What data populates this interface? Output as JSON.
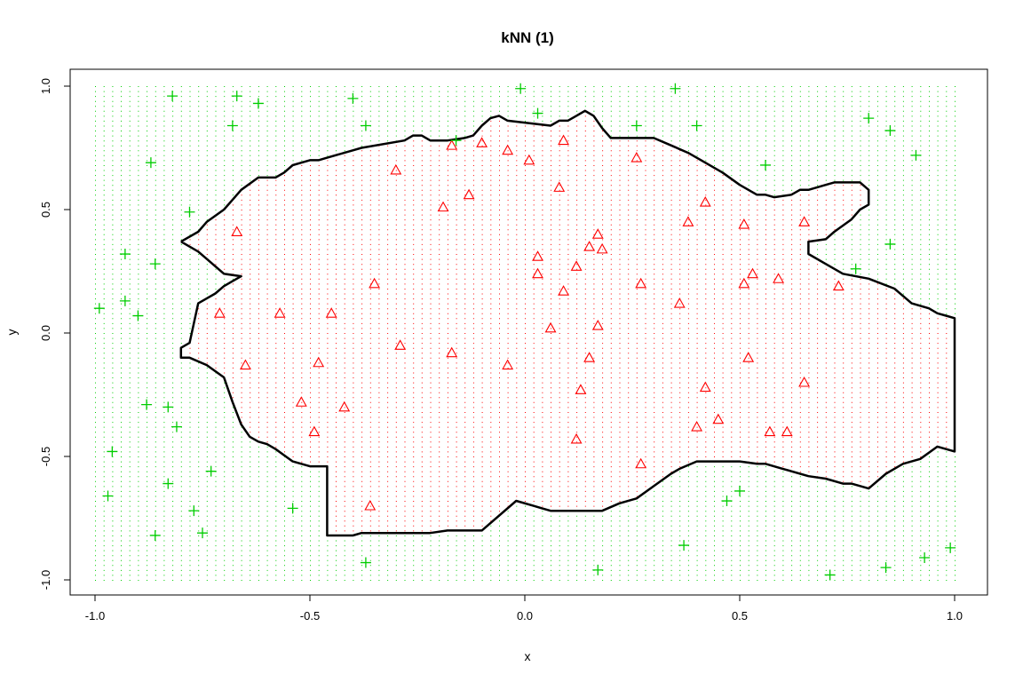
{
  "chart_data": {
    "type": "scatter",
    "title": "kNN (1)",
    "xlabel": "x",
    "ylabel": "y",
    "xlim": [
      -1.0,
      1.0
    ],
    "ylim": [
      -1.0,
      1.0
    ],
    "x_ticks": [
      "-1.0",
      "-0.5",
      "0.0",
      "0.5",
      "1.0"
    ],
    "y_ticks": [
      "-1.0",
      "-0.5",
      "0.0",
      "0.5",
      "1.0"
    ],
    "grid": false,
    "legend": "none",
    "colors": {
      "class_inside": "#ff0000",
      "class_outside": "#00cd00",
      "boundary": "#000000"
    },
    "background_grid": {
      "description_type": "dense classification grid",
      "step": 0.02
    },
    "series": [
      {
        "marker": "triangle",
        "color": "#ff0000",
        "points": [
          [
            -0.67,
            0.41
          ],
          [
            -0.71,
            0.08
          ],
          [
            -0.65,
            -0.13
          ],
          [
            -0.57,
            0.08
          ],
          [
            -0.52,
            -0.28
          ],
          [
            -0.49,
            -0.4
          ],
          [
            -0.48,
            -0.12
          ],
          [
            -0.45,
            0.08
          ],
          [
            -0.42,
            -0.3
          ],
          [
            -0.35,
            0.2
          ],
          [
            -0.36,
            -0.7
          ],
          [
            -0.3,
            0.66
          ],
          [
            -0.29,
            -0.05
          ],
          [
            -0.19,
            0.51
          ],
          [
            -0.17,
            0.76
          ],
          [
            -0.17,
            -0.08
          ],
          [
            -0.13,
            0.56
          ],
          [
            -0.1,
            0.77
          ],
          [
            -0.04,
            0.74
          ],
          [
            -0.04,
            -0.13
          ],
          [
            0.01,
            0.7
          ],
          [
            0.03,
            0.31
          ],
          [
            0.03,
            0.24
          ],
          [
            0.06,
            0.02
          ],
          [
            0.08,
            0.59
          ],
          [
            0.09,
            0.78
          ],
          [
            0.09,
            0.17
          ],
          [
            0.12,
            0.27
          ],
          [
            0.12,
            -0.43
          ],
          [
            0.13,
            -0.23
          ],
          [
            0.15,
            0.35
          ],
          [
            0.15,
            -0.1
          ],
          [
            0.17,
            0.4
          ],
          [
            0.17,
            0.03
          ],
          [
            0.18,
            0.34
          ],
          [
            0.26,
            0.71
          ],
          [
            0.27,
            0.2
          ],
          [
            0.27,
            -0.53
          ],
          [
            0.36,
            0.12
          ],
          [
            0.38,
            0.45
          ],
          [
            0.4,
            -0.38
          ],
          [
            0.42,
            0.53
          ],
          [
            0.42,
            -0.22
          ],
          [
            0.45,
            -0.35
          ],
          [
            0.51,
            0.44
          ],
          [
            0.51,
            0.2
          ],
          [
            0.52,
            -0.1
          ],
          [
            0.53,
            0.24
          ],
          [
            0.57,
            -0.4
          ],
          [
            0.59,
            0.22
          ],
          [
            0.61,
            -0.4
          ],
          [
            0.65,
            0.45
          ],
          [
            0.65,
            -0.2
          ],
          [
            0.73,
            0.19
          ]
        ]
      },
      {
        "marker": "plus",
        "color": "#00cd00",
        "points": [
          [
            -0.99,
            0.1
          ],
          [
            -0.96,
            -0.48
          ],
          [
            -0.97,
            -0.66
          ],
          [
            -0.93,
            0.32
          ],
          [
            -0.93,
            0.13
          ],
          [
            -0.9,
            0.07
          ],
          [
            -0.88,
            -0.29
          ],
          [
            -0.87,
            0.69
          ],
          [
            -0.86,
            0.28
          ],
          [
            -0.86,
            -0.82
          ],
          [
            -0.83,
            -0.3
          ],
          [
            -0.83,
            -0.61
          ],
          [
            -0.82,
            0.96
          ],
          [
            -0.81,
            -0.38
          ],
          [
            -0.78,
            0.49
          ],
          [
            -0.77,
            -0.72
          ],
          [
            -0.75,
            -0.81
          ],
          [
            -0.73,
            -0.56
          ],
          [
            -0.67,
            0.96
          ],
          [
            -0.68,
            0.84
          ],
          [
            -0.62,
            0.93
          ],
          [
            -0.54,
            -0.71
          ],
          [
            -0.4,
            0.95
          ],
          [
            -0.37,
            0.84
          ],
          [
            -0.37,
            -0.93
          ],
          [
            -0.16,
            0.78
          ],
          [
            -0.01,
            0.99
          ],
          [
            0.03,
            0.89
          ],
          [
            0.17,
            -0.96
          ],
          [
            0.26,
            0.84
          ],
          [
            0.35,
            0.99
          ],
          [
            0.37,
            -0.86
          ],
          [
            0.4,
            0.84
          ],
          [
            0.47,
            -0.68
          ],
          [
            0.5,
            -0.64
          ],
          [
            0.56,
            0.68
          ],
          [
            0.71,
            -0.98
          ],
          [
            0.77,
            0.26
          ],
          [
            0.8,
            0.87
          ],
          [
            0.84,
            -0.95
          ],
          [
            0.85,
            0.82
          ],
          [
            0.85,
            0.36
          ],
          [
            0.91,
            0.72
          ],
          [
            0.93,
            -0.91
          ],
          [
            0.99,
            -0.87
          ]
        ]
      }
    ],
    "boundary": {
      "x": [
        -0.8,
        -0.76,
        -0.74,
        -0.7,
        -0.68,
        -0.66,
        -0.62,
        -0.58,
        -0.56,
        -0.54,
        -0.52,
        -0.5,
        -0.48,
        -0.46,
        -0.42,
        -0.4,
        -0.38,
        -0.28,
        -0.26,
        -0.24,
        -0.22,
        -0.18,
        -0.14,
        -0.12,
        -0.1,
        -0.08,
        -0.06,
        -0.04,
        0.06,
        0.08,
        0.1,
        0.12,
        0.14,
        0.16,
        0.18,
        0.2,
        0.3,
        0.34,
        0.38,
        0.42,
        0.46,
        0.5,
        0.54,
        0.56,
        0.58,
        0.62,
        0.64,
        0.66,
        0.7,
        0.72,
        0.78,
        0.8,
        0.8,
        0.78,
        0.76,
        0.72,
        0.7,
        0.66,
        0.66,
        0.7,
        0.74,
        0.8,
        0.86,
        0.9,
        0.94,
        0.96,
        0.98,
        1.0,
        1.0,
        0.96,
        0.92,
        0.88,
        0.84,
        0.8,
        0.76,
        0.74,
        0.7,
        0.66,
        0.6,
        0.56,
        0.54,
        0.5,
        0.44,
        0.4,
        0.36,
        0.34,
        0.3,
        0.26,
        0.22,
        0.18,
        0.14,
        0.1,
        0.06,
        0.04,
        0.02,
        -0.02,
        -0.1,
        -0.12,
        -0.14,
        -0.18,
        -0.22,
        -0.26,
        -0.34,
        -0.38,
        -0.4,
        -0.44,
        -0.46,
        -0.46,
        -0.5,
        -0.54,
        -0.58,
        -0.6,
        -0.62,
        -0.64,
        -0.66,
        -0.68,
        -0.7,
        -0.74,
        -0.78,
        -0.8,
        -0.8,
        -0.78,
        -0.76,
        -0.74,
        -0.72,
        -0.7,
        -0.68,
        -0.66,
        -0.7,
        -0.74,
        -0.76,
        -0.8
      ],
      "y": [
        0.37,
        0.41,
        0.45,
        0.5,
        0.54,
        0.58,
        0.63,
        0.63,
        0.65,
        0.68,
        0.69,
        0.7,
        0.7,
        0.71,
        0.73,
        0.74,
        0.75,
        0.78,
        0.8,
        0.8,
        0.78,
        0.78,
        0.79,
        0.8,
        0.84,
        0.87,
        0.88,
        0.86,
        0.84,
        0.86,
        0.86,
        0.88,
        0.9,
        0.88,
        0.83,
        0.79,
        0.79,
        0.76,
        0.73,
        0.69,
        0.65,
        0.6,
        0.56,
        0.56,
        0.55,
        0.56,
        0.58,
        0.58,
        0.6,
        0.61,
        0.61,
        0.58,
        0.52,
        0.5,
        0.46,
        0.41,
        0.38,
        0.37,
        0.32,
        0.28,
        0.24,
        0.22,
        0.18,
        0.12,
        0.1,
        0.08,
        0.07,
        0.06,
        -0.48,
        -0.46,
        -0.51,
        -0.53,
        -0.57,
        -0.63,
        -0.61,
        -0.61,
        -0.59,
        -0.58,
        -0.55,
        -0.53,
        -0.53,
        -0.52,
        -0.52,
        -0.52,
        -0.55,
        -0.57,
        -0.62,
        -0.67,
        -0.69,
        -0.72,
        -0.72,
        -0.72,
        -0.72,
        -0.71,
        -0.7,
        -0.68,
        -0.8,
        -0.8,
        -0.8,
        -0.8,
        -0.81,
        -0.81,
        -0.81,
        -0.81,
        -0.82,
        -0.82,
        -0.82,
        -0.54,
        -0.54,
        -0.52,
        -0.47,
        -0.45,
        -0.44,
        -0.42,
        -0.37,
        -0.28,
        -0.18,
        -0.13,
        -0.1,
        -0.1,
        -0.06,
        -0.04,
        0.12,
        0.14,
        0.16,
        0.19,
        0.21,
        0.23,
        0.24,
        0.3,
        0.33,
        0.37
      ]
    }
  }
}
